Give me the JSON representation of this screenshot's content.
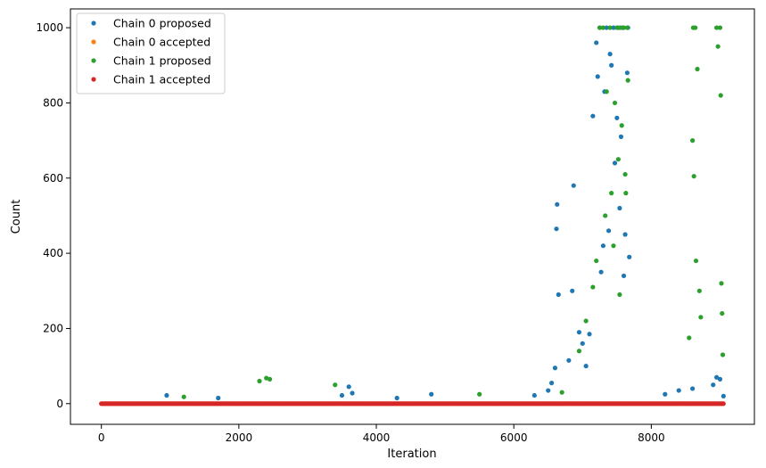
{
  "chart_data": {
    "type": "scatter",
    "title": "",
    "xlabel": "Iteration",
    "ylabel": "Count",
    "xlim": [
      -450,
      9500
    ],
    "ylim": [
      -55,
      1050
    ],
    "xticks": [
      0,
      2000,
      4000,
      6000,
      8000
    ],
    "yticks": [
      0,
      200,
      400,
      600,
      800,
      1000
    ],
    "grid": false,
    "legend_position": "top-left",
    "series": [
      {
        "name": "Chain 0 proposed",
        "color": "#1f77b4",
        "points": [
          [
            950,
            22
          ],
          [
            1700,
            15
          ],
          [
            3500,
            22
          ],
          [
            3600,
            45
          ],
          [
            3650,
            28
          ],
          [
            4300,
            15
          ],
          [
            4800,
            25
          ],
          [
            6300,
            22
          ],
          [
            6500,
            35
          ],
          [
            6550,
            55
          ],
          [
            6600,
            95
          ],
          [
            6620,
            465
          ],
          [
            6630,
            530
          ],
          [
            6650,
            290
          ],
          [
            6800,
            115
          ],
          [
            6850,
            300
          ],
          [
            6870,
            580
          ],
          [
            6950,
            190
          ],
          [
            7000,
            160
          ],
          [
            7050,
            100
          ],
          [
            7100,
            185
          ],
          [
            7150,
            765
          ],
          [
            7200,
            960
          ],
          [
            7220,
            870
          ],
          [
            7250,
            1000
          ],
          [
            7270,
            350
          ],
          [
            7300,
            420
          ],
          [
            7320,
            830
          ],
          [
            7350,
            1000
          ],
          [
            7380,
            460
          ],
          [
            7400,
            930
          ],
          [
            7420,
            900
          ],
          [
            7450,
            1000
          ],
          [
            7470,
            640
          ],
          [
            7500,
            760
          ],
          [
            7520,
            1000
          ],
          [
            7540,
            520
          ],
          [
            7560,
            710
          ],
          [
            7580,
            1000
          ],
          [
            7600,
            340
          ],
          [
            7620,
            450
          ],
          [
            7650,
            880
          ],
          [
            7660,
            1000
          ],
          [
            7680,
            390
          ],
          [
            8200,
            25
          ],
          [
            8400,
            35
          ],
          [
            8600,
            40
          ],
          [
            8900,
            50
          ],
          [
            8950,
            70
          ],
          [
            9000,
            65
          ],
          [
            9050,
            20
          ]
        ]
      },
      {
        "name": "Chain 0 accepted",
        "color": "#ff7f0e",
        "points": [
          [
            0,
            0
          ],
          [
            9050,
            0
          ]
        ]
      },
      {
        "name": "Chain 1 proposed",
        "color": "#2ca02c",
        "points": [
          [
            1200,
            18
          ],
          [
            2300,
            60
          ],
          [
            2400,
            68
          ],
          [
            2450,
            65
          ],
          [
            3400,
            50
          ],
          [
            5500,
            25
          ],
          [
            6700,
            30
          ],
          [
            6950,
            140
          ],
          [
            7050,
            220
          ],
          [
            7150,
            310
          ],
          [
            7200,
            380
          ],
          [
            7250,
            1000
          ],
          [
            7300,
            1000
          ],
          [
            7330,
            500
          ],
          [
            7350,
            830
          ],
          [
            7400,
            1000
          ],
          [
            7420,
            560
          ],
          [
            7450,
            420
          ],
          [
            7470,
            800
          ],
          [
            7500,
            1000
          ],
          [
            7520,
            650
          ],
          [
            7540,
            290
          ],
          [
            7550,
            1000
          ],
          [
            7570,
            740
          ],
          [
            7600,
            1000
          ],
          [
            7620,
            610
          ],
          [
            7630,
            560
          ],
          [
            7650,
            1000
          ],
          [
            7660,
            860
          ],
          [
            8550,
            175
          ],
          [
            8600,
            700
          ],
          [
            8610,
            1000
          ],
          [
            8620,
            605
          ],
          [
            8640,
            1000
          ],
          [
            8650,
            380
          ],
          [
            8670,
            890
          ],
          [
            8700,
            300
          ],
          [
            8720,
            230
          ],
          [
            8950,
            1000
          ],
          [
            8970,
            950
          ],
          [
            9000,
            1000
          ],
          [
            9010,
            820
          ],
          [
            9020,
            320
          ],
          [
            9030,
            240
          ],
          [
            9040,
            130
          ]
        ]
      },
      {
        "name": "Chain 1 accepted",
        "color": "#d62728",
        "points": [
          [
            0,
            0
          ],
          [
            9050,
            0
          ]
        ]
      }
    ]
  }
}
